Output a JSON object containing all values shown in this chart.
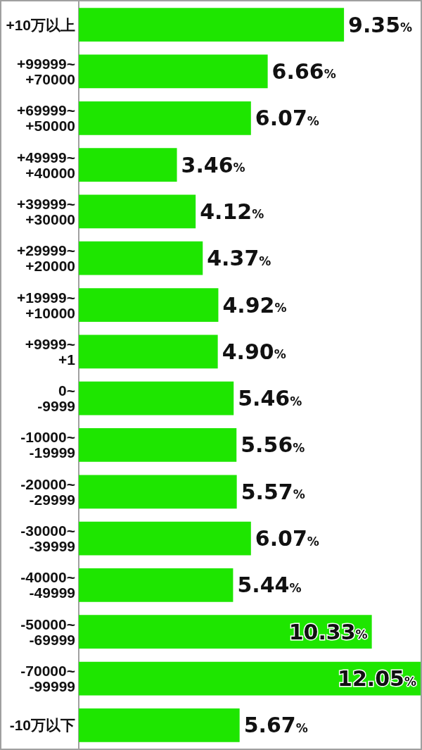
{
  "chart_data": {
    "type": "bar",
    "orientation": "horizontal",
    "categories": [
      "+10万以上",
      "+99999~+70000",
      "+69999~+50000",
      "+49999~+40000",
      "+39999~+30000",
      "+29999~+20000",
      "+19999~+10000",
      "+9999~+1",
      "0~-9999",
      "-10000~-19999",
      "-20000~-29999",
      "-30000~-39999",
      "-40000~-49999",
      "-50000~-69999",
      "-70000~-99999",
      "-10万以下"
    ],
    "values": [
      9.35,
      6.66,
      6.07,
      3.46,
      4.12,
      4.37,
      4.92,
      4.9,
      5.46,
      5.56,
      5.57,
      6.07,
      5.44,
      10.33,
      12.05,
      5.67
    ],
    "value_labels": [
      "9.35%",
      "6.66%",
      "6.07%",
      "3.46%",
      "4.12%",
      "4.37%",
      "4.92%",
      "4.90%",
      "5.46%",
      "5.56%",
      "5.57%",
      "6.07%",
      "5.44%",
      "10.33%",
      "12.05%",
      "5.67%"
    ],
    "color": "#1ee600"
  }
}
